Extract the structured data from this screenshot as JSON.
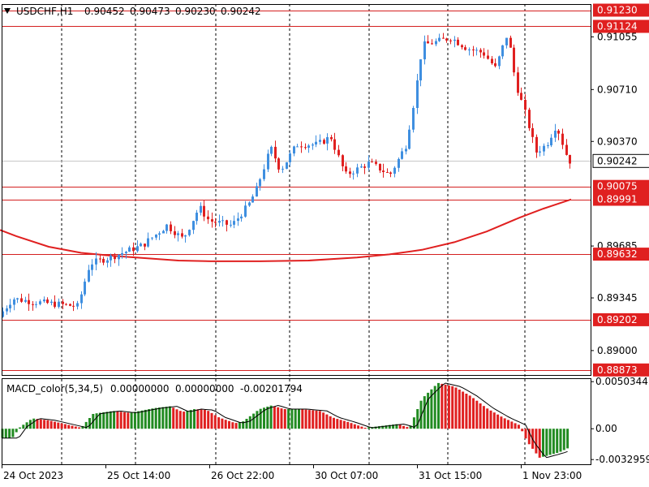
{
  "chart_data": {
    "type": "candlestick",
    "symbol_title": "USDCHF,H1",
    "ohlc_header": [
      "0.90452",
      "0.90473",
      "0.90230",
      "0.90242"
    ],
    "current_price": "0.90242",
    "price_axis_ticks": [
      "0.91055",
      "0.90710",
      "0.90370",
      "0.89685",
      "0.89345",
      "0.89000"
    ],
    "horizontal_levels": [
      "0.91230",
      "0.91124",
      "0.90075",
      "0.89991",
      "0.89632",
      "0.89202",
      "0.88873"
    ],
    "time_axis_labels": [
      "24 Oct 2023",
      "25 Oct 14:00",
      "26 Oct 22:00",
      "30 Oct 07:00",
      "31 Oct 15:00",
      "1 Nov 23:00"
    ],
    "ylim": [
      0.8884,
      0.9127
    ],
    "moving_average": [
      [
        0,
        0.8979
      ],
      [
        20,
        0.8975
      ],
      [
        60,
        0.8968
      ],
      [
        100,
        0.8964
      ],
      [
        140,
        0.8962
      ],
      [
        180,
        0.89605
      ],
      [
        220,
        0.8959
      ],
      [
        260,
        0.89585
      ],
      [
        320,
        0.89585
      ],
      [
        380,
        0.8959
      ],
      [
        440,
        0.8961
      ],
      [
        480,
        0.8963
      ],
      [
        520,
        0.8966
      ],
      [
        560,
        0.8971
      ],
      [
        600,
        0.8978
      ],
      [
        640,
        0.8987
      ],
      [
        670,
        0.8993
      ],
      [
        704,
        0.8999
      ]
    ],
    "candles_key_points": [
      [
        2,
        0.8922
      ],
      [
        20,
        0.8934
      ],
      [
        45,
        0.8932
      ],
      [
        100,
        0.8929
      ],
      [
        115,
        0.8957
      ],
      [
        140,
        0.8961
      ],
      [
        180,
        0.8969
      ],
      [
        210,
        0.8982
      ],
      [
        230,
        0.8973
      ],
      [
        250,
        0.8994
      ],
      [
        262,
        0.8985
      ],
      [
        290,
        0.8982
      ],
      [
        310,
        0.8995
      ],
      [
        320,
        0.9005
      ],
      [
        338,
        0.9033
      ],
      [
        350,
        0.9018
      ],
      [
        370,
        0.9035
      ],
      [
        395,
        0.9035
      ],
      [
        412,
        0.904
      ],
      [
        430,
        0.9015
      ],
      [
        460,
        0.9023
      ],
      [
        485,
        0.9015
      ],
      [
        505,
        0.9035
      ],
      [
        515,
        0.9065
      ],
      [
        525,
        0.91
      ],
      [
        540,
        0.9102
      ],
      [
        560,
        0.9105
      ],
      [
        580,
        0.9098
      ],
      [
        600,
        0.9095
      ],
      [
        615,
        0.9085
      ],
      [
        630,
        0.9108
      ],
      [
        640,
        0.9075
      ],
      [
        652,
        0.9055
      ],
      [
        665,
        0.903
      ],
      [
        678,
        0.9035
      ],
      [
        690,
        0.9048
      ],
      [
        705,
        0.90242
      ]
    ],
    "macd": {
      "label": "MACD_color(5,34,5)",
      "values_text": [
        "0.00000000",
        "0.00000000",
        "-0.00201794"
      ],
      "ticks": [
        "0.0050344",
        "0.00",
        "-0.0032959"
      ],
      "ylim": [
        -0.0038,
        0.0054
      ],
      "histogram_key_points": [
        [
          2,
          -0.001
        ],
        [
          15,
          -0.001
        ],
        [
          25,
          0.0002
        ],
        [
          40,
          0.0011
        ],
        [
          60,
          0.0009
        ],
        [
          80,
          0.0005
        ],
        [
          100,
          0.0001
        ],
        [
          115,
          0.0016
        ],
        [
          140,
          0.0019
        ],
        [
          160,
          0.0017
        ],
        [
          190,
          0.0022
        ],
        [
          210,
          0.0024
        ],
        [
          225,
          0.0018
        ],
        [
          240,
          0.0021
        ],
        [
          255,
          0.002
        ],
        [
          270,
          0.0012
        ],
        [
          290,
          0.0006
        ],
        [
          300,
          0.0008
        ],
        [
          320,
          0.0021
        ],
        [
          335,
          0.0025
        ],
        [
          350,
          0.0021
        ],
        [
          370,
          0.0021
        ],
        [
          395,
          0.0019
        ],
        [
          410,
          0.0012
        ],
        [
          430,
          0.0007
        ],
        [
          450,
          0.0001
        ],
        [
          470,
          0.0003
        ],
        [
          490,
          0.0005
        ],
        [
          505,
          0.0001
        ],
        [
          520,
          0.0032
        ],
        [
          540,
          0.0049
        ],
        [
          560,
          0.0045
        ],
        [
          580,
          0.0035
        ],
        [
          600,
          0.0022
        ],
        [
          620,
          0.0012
        ],
        [
          640,
          0.0004
        ],
        [
          650,
          -0.0014
        ],
        [
          665,
          -0.0031
        ],
        [
          678,
          -0.0028
        ],
        [
          690,
          -0.0025
        ],
        [
          702,
          -0.002
        ]
      ]
    },
    "colors": {
      "bull": "#3f8fe0",
      "bear": "#e02020",
      "ma": "#e02020",
      "level": "#d42020",
      "tag_bg": "#e02020",
      "macd_up": "#228B22",
      "macd_down": "#e02020"
    },
    "grid": "dashed-vertical"
  }
}
